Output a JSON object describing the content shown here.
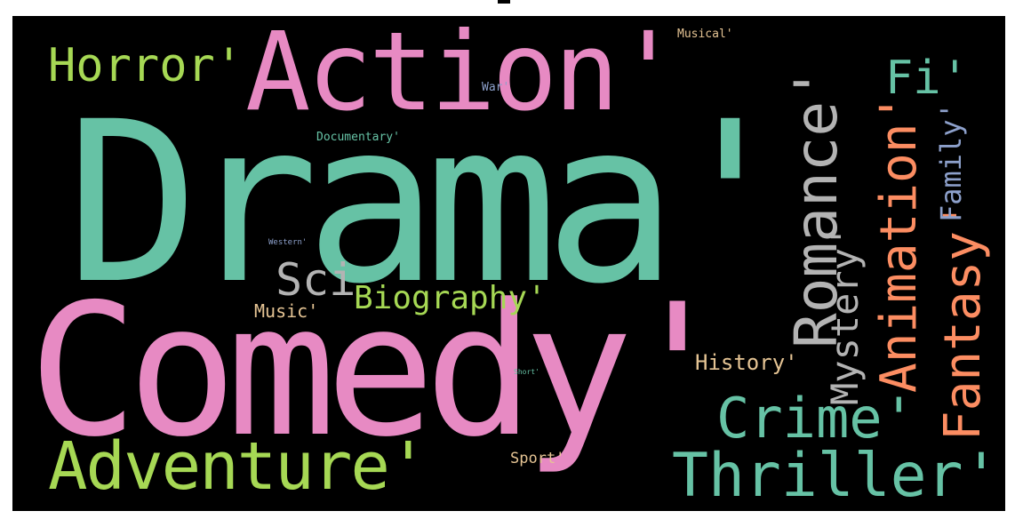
{
  "wordcloud": {
    "words": {
      "drama": "Drama'",
      "comedy": "Comedy'",
      "action": "Action'",
      "horror": "Horror'",
      "adventure": "Adventure'",
      "sci": "Sci",
      "biography": "Biography'",
      "music": "Music'",
      "crime": "Crime'",
      "thriller": "Thriller'",
      "history": "History'",
      "sport": "Sport'",
      "fi": "Fi'",
      "musical": "Musical'",
      "war": "War'",
      "documentary": "Documentary'",
      "western": "Western'",
      "short": "Short'",
      "romance": "Romance'",
      "mystery": "Mystery'",
      "animation": "Animation'",
      "fantasy": "Fantasy'",
      "family": "Family'"
    },
    "colors": {
      "background": "#000000",
      "teal": "#66c2a5",
      "pink": "#e78ac3",
      "green": "#a6d854",
      "orange": "#fc8d62",
      "gray": "#b3b3b3",
      "tan": "#e5c494",
      "blue": "#8da0cb"
    },
    "word_colors": {
      "drama": "teal",
      "comedy": "pink",
      "action": "pink",
      "horror": "green",
      "adventure": "green",
      "sci": "gray",
      "biography": "green",
      "music": "tan",
      "crime": "teal",
      "thriller": "teal",
      "history": "tan",
      "sport": "tan",
      "fi": "teal",
      "musical": "tan",
      "war": "blue",
      "documentary": "teal",
      "western": "blue",
      "short": "teal",
      "romance": "gray",
      "mystery": "gray",
      "animation": "orange",
      "fantasy": "orange",
      "family": "blue"
    }
  }
}
